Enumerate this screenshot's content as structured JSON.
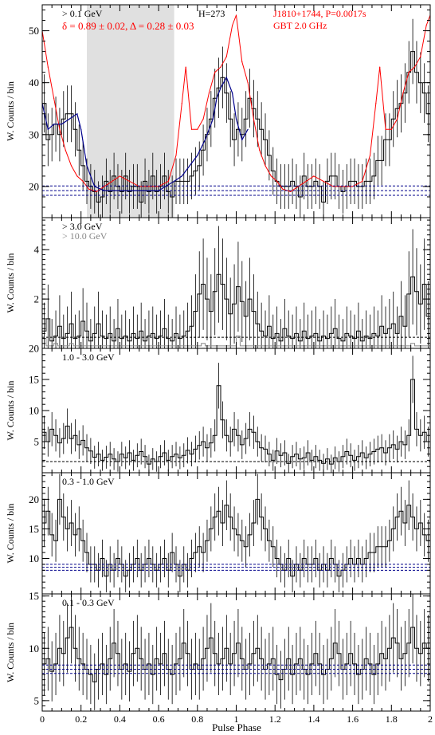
{
  "figure": {
    "xlabel": "Pulse Phase",
    "x_ticks": [
      "0",
      "0.2",
      "0.4",
      "0.6",
      "0.8",
      "1",
      "1.2",
      "1.4",
      "1.6",
      "1.8",
      "2"
    ]
  },
  "colors": {
    "gamma": "#000000",
    "radio": "#ff0000",
    "model": "#00008b",
    "background": "#00008b",
    "offpulse_region": "#e0e0e0",
    "high_energy": "#888888"
  },
  "chart_data": [
    {
      "type": "line",
      "panel": "0.1 GeV",
      "ylabel": "W. Counts / bin",
      "ylim": [
        14,
        55
      ],
      "y_ticks": [
        20,
        30,
        40,
        50
      ],
      "xlim": [
        0,
        2
      ],
      "labels": {
        "energy": "> 0.1 GeV",
        "htest": "H=273",
        "fit": "δ = 0.89 ± 0.02, Δ = 0.28 ± 0.03",
        "pulsar": "J1810+1744, P=0.0017s",
        "radio": "GBT 2.0 GHz"
      },
      "offpulse": [
        0.23,
        0.68
      ],
      "background_levels": [
        18.3,
        19.2,
        20.1
      ],
      "series": [
        {
          "values": [
            36,
            29,
            30,
            32,
            30,
            33,
            34,
            34,
            31,
            27,
            24,
            21,
            20,
            19,
            17,
            18,
            21,
            19,
            22,
            20,
            19,
            22,
            19,
            20,
            20,
            17,
            21,
            19,
            22,
            19,
            20,
            22,
            19,
            18,
            21,
            21,
            21,
            21,
            22,
            23,
            24,
            27,
            30,
            33,
            37,
            39,
            41,
            38,
            33,
            29,
            31,
            30,
            33,
            37,
            35,
            33,
            31,
            29,
            26,
            23,
            21,
            20,
            20,
            20,
            21,
            20,
            18,
            22,
            20,
            20,
            21,
            20,
            17,
            21,
            22,
            22,
            20,
            19,
            20,
            21,
            21,
            20,
            20,
            21,
            21,
            22,
            25,
            25,
            29,
            29,
            33,
            35,
            36,
            38,
            42,
            46,
            42,
            40,
            38,
            34
          ]
        },
        {
          "name": "radio",
          "x": [
            0,
            0.03,
            0.06,
            0.09,
            0.12,
            0.15,
            0.18,
            0.21,
            0.24,
            0.28,
            0.32,
            0.36,
            0.4,
            0.45,
            0.5,
            0.55,
            0.6,
            0.65,
            0.69,
            0.72,
            0.74,
            0.77,
            0.8,
            0.83,
            0.86,
            0.89,
            0.92,
            0.95,
            0.98,
            1.0,
            1.03,
            1.06,
            1.09,
            1.12,
            1.15,
            1.18,
            1.21,
            1.24,
            1.28,
            1.32,
            1.36,
            1.4,
            1.45,
            1.5,
            1.55,
            1.6,
            1.65,
            1.69,
            1.72,
            1.74,
            1.77,
            1.8,
            1.83,
            1.86,
            1.89,
            1.92,
            1.95,
            1.98,
            2.0
          ],
          "values": [
            50,
            43,
            37,
            31,
            27,
            24,
            22,
            21,
            19.5,
            19,
            20,
            21,
            22,
            21,
            20,
            20,
            20,
            21,
            26,
            36,
            43,
            31,
            31,
            33,
            38,
            42,
            43,
            45,
            51,
            53,
            44,
            40,
            33,
            27,
            24,
            22,
            21,
            19.5,
            19,
            20,
            21,
            22,
            21,
            20,
            20,
            20,
            21,
            26,
            36,
            43,
            31,
            31,
            33,
            38,
            42,
            43,
            45,
            51,
            53
          ]
        },
        {
          "name": "model",
          "x": [
            0,
            0.03,
            0.06,
            0.1,
            0.14,
            0.18,
            0.2,
            0.23,
            0.27,
            0.32,
            0.4,
            0.5,
            0.6,
            0.68,
            0.72,
            0.76,
            0.8,
            0.84,
            0.88,
            0.9,
            0.92,
            0.95,
            0.98,
            1.0,
            1.03,
            1.06
          ],
          "values": [
            36,
            31,
            32,
            32,
            33,
            34,
            31,
            24,
            20,
            19.2,
            19.2,
            19.2,
            19.2,
            21,
            22,
            24,
            26,
            29,
            33,
            37,
            39,
            41,
            38,
            33,
            29,
            31
          ]
        }
      ]
    },
    {
      "type": "line",
      "panel": "3.0 GeV",
      "ylabel": "W. Counts / bin",
      "ylim": [
        0,
        5.3
      ],
      "y_ticks": [
        2,
        4
      ],
      "xlim": [
        0,
        2
      ],
      "labels": {
        "energy": "> 3.0 GeV",
        "energy2": "> 10.0 GeV"
      },
      "background_levels": [
        0.45
      ],
      "series": [
        {
          "values": [
            0.7,
            1.2,
            0.3,
            0.5,
            0.9,
            0.4,
            0.6,
            1.0,
            0.4,
            0.5,
            1.1,
            0.7,
            0.3,
            0.6,
            1.0,
            0.5,
            0.4,
            0.6,
            0.3,
            0.8,
            0.4,
            0.5,
            0.3,
            0.6,
            0.4,
            0.7,
            0.3,
            0.5,
            0.6,
            0.4,
            0.5,
            0.8,
            0.4,
            0.3,
            0.6,
            0.4,
            0.5,
            0.7,
            0.9,
            1.5,
            2.2,
            2.6,
            2.0,
            1.5,
            2.3,
            3.0,
            2.6,
            2.0,
            1.4,
            1.8,
            2.5,
            1.9,
            1.3,
            2.0,
            1.5,
            1.0,
            0.7,
            0.5,
            0.9,
            0.4,
            0.6,
            0.3,
            0.8,
            0.5,
            0.4,
            0.6,
            0.3,
            0.7,
            0.4,
            0.5,
            0.6,
            0.3,
            0.5,
            0.4,
            0.6,
            0.8,
            0.4,
            0.3,
            0.6,
            0.5,
            0.4,
            0.7,
            0.3,
            0.5,
            0.4,
            0.6,
            0.5,
            0.9,
            0.6,
            0.8,
            1.0,
            0.6,
            1.3,
            0.9,
            2.2,
            2.9,
            2.3,
            1.8,
            2.6,
            1.3
          ]
        },
        {
          "name": "> 10.0 GeV",
          "values": [
            0.4,
            0.1,
            0.1,
            0.2,
            0.1,
            0.1,
            0.1,
            0.2,
            0.1,
            0.1,
            0.1,
            0.1,
            0.1,
            0.1,
            0.1,
            0.1,
            0.1,
            0.1,
            0.1,
            0.1,
            0.1,
            0.1,
            0.1,
            0.1,
            0.1,
            0.1,
            0.1,
            0.1,
            0.1,
            0.1,
            0.1,
            0.1,
            0.1,
            0.1,
            0.1,
            0.1,
            0.1,
            0.1,
            0.1,
            0.1,
            0.1,
            0.2,
            0.1,
            0.1,
            0.1,
            0.1,
            0.1,
            0.1,
            0.1,
            0.1,
            0.5,
            0.1,
            0.1,
            0.1,
            0.1,
            0.1,
            0.1,
            0.1,
            0.1,
            0.1,
            0.1,
            0.1,
            0.1,
            0.1,
            0.1,
            0.1,
            0.1,
            0.1,
            0.1,
            0.1,
            0.1,
            0.1,
            0.1,
            0.1,
            0.1,
            0.1,
            0.1,
            0.1,
            0.1,
            0.1,
            0.1,
            0.1,
            0.1,
            0.1,
            0.1,
            0.1,
            0.1,
            0.1,
            0.1,
            0.1,
            0.1,
            0.1,
            0.1,
            0.1,
            0.1,
            0.2,
            0.1,
            0.1,
            0.1,
            0.1
          ]
        }
      ]
    },
    {
      "type": "line",
      "panel": "1.0 - 3.0 GeV",
      "ylabel": "W. Counts / bin",
      "ylim": [
        0,
        20
      ],
      "y_ticks": [
        5,
        10,
        15,
        20
      ],
      "xlim": [
        0,
        2
      ],
      "labels": {
        "energy": "1.0 - 3.0 GeV"
      },
      "background_levels": [
        1.8
      ],
      "series": [
        {
          "values": [
            6.5,
            5.0,
            7.0,
            6.0,
            4.8,
            5.5,
            7.5,
            5.5,
            6.0,
            4.5,
            5.2,
            4.0,
            3.5,
            2.5,
            3.0,
            2.0,
            2.5,
            3.0,
            2.2,
            1.8,
            3.0,
            2.4,
            3.2,
            2.0,
            2.8,
            3.4,
            2.6,
            1.4,
            2.2,
            1.8,
            2.6,
            3.2,
            2.0,
            2.6,
            3.0,
            2.4,
            2.8,
            3.6,
            3.0,
            3.8,
            4.4,
            5.0,
            4.0,
            4.8,
            6.0,
            14.0,
            8.5,
            6.0,
            5.0,
            7.0,
            6.0,
            4.5,
            5.5,
            7.0,
            6.5,
            5.0,
            4.0,
            3.8,
            3.0,
            2.0,
            3.5,
            2.8,
            3.2,
            1.5,
            2.6,
            3.0,
            2.2,
            2.4,
            3.2,
            2.0,
            2.6,
            2.0,
            1.5,
            2.2,
            1.4,
            2.4,
            1.8,
            2.6,
            3.4,
            2.8,
            2.0,
            2.6,
            3.2,
            2.4,
            3.0,
            3.4,
            3.8,
            4.0,
            3.2,
            4.0,
            4.5,
            3.8,
            5.0,
            4.5,
            6.0,
            15.0,
            7.0,
            6.0,
            6.5,
            5.0
          ]
        }
      ]
    },
    {
      "type": "line",
      "panel": "0.3 - 1.0 GeV",
      "ylabel": "W. Counts / bin",
      "ylim": [
        4,
        24.5
      ],
      "y_ticks": [
        10,
        15,
        20
      ],
      "xlim": [
        0,
        2
      ],
      "labels": {
        "energy": "0.3 - 1.0 GeV"
      },
      "background_levels": [
        8.0,
        8.5,
        9.0
      ],
      "series": [
        {
          "values": [
            16,
            18,
            14,
            13,
            20,
            17,
            15,
            16,
            14,
            15,
            13,
            11,
            9,
            9,
            8,
            10,
            7,
            9,
            8,
            10,
            9,
            7,
            8,
            9,
            10,
            8,
            9,
            10,
            9,
            8,
            9,
            10,
            8,
            11,
            9,
            7,
            9,
            8,
            10,
            11,
            12,
            11,
            13,
            15,
            17,
            18,
            16,
            19,
            17,
            15,
            14,
            13,
            12,
            14,
            16,
            20,
            17,
            15,
            13,
            12,
            10,
            9,
            8,
            10,
            7,
            9,
            8,
            10,
            9,
            9,
            10,
            8,
            9,
            8,
            10,
            9,
            7,
            8,
            9,
            10,
            9,
            10,
            9,
            10,
            11,
            11,
            12,
            12,
            12,
            13,
            15,
            17,
            18,
            16,
            19,
            17,
            15,
            16,
            14,
            13
          ]
        }
      ]
    },
    {
      "type": "line",
      "panel": "0.1 - 0.3 GeV",
      "ylabel": "W. Counts / bin",
      "ylim": [
        4,
        15.2
      ],
      "y_ticks": [
        5,
        10,
        15
      ],
      "xlim": [
        0,
        2
      ],
      "labels": {
        "energy": "0.1 - 0.3 GeV"
      },
      "background_levels": [
        7.6,
        8.0,
        8.4
      ],
      "series": [
        {
          "values": [
            8.5,
            9.0,
            7.8,
            8.5,
            10.0,
            9.5,
            11.0,
            12.0,
            10.0,
            9.0,
            8.5,
            8.0,
            7.5,
            6.8,
            8.0,
            8.5,
            7.5,
            9.0,
            10.5,
            9.5,
            8.0,
            8.5,
            7.8,
            9.5,
            10.0,
            9.0,
            8.0,
            8.5,
            7.5,
            9.0,
            8.5,
            9.5,
            8.0,
            7.5,
            8.5,
            9.0,
            10.5,
            9.5,
            8.0,
            8.5,
            8.0,
            9.0,
            10.0,
            11.0,
            9.5,
            8.5,
            9.0,
            10.0,
            8.5,
            9.5,
            10.5,
            9.0,
            8.0,
            8.5,
            9.5,
            10.0,
            9.0,
            8.0,
            8.5,
            9.0,
            7.5,
            7.0,
            8.0,
            9.0,
            7.5,
            8.5,
            9.0,
            8.0,
            7.5,
            8.5,
            9.5,
            8.5,
            7.5,
            8.0,
            9.0,
            10.5,
            9.5,
            8.0,
            8.5,
            9.5,
            8.5,
            7.5,
            8.0,
            9.0,
            8.5,
            7.5,
            8.5,
            9.5,
            9.0,
            10.0,
            11.0,
            10.5,
            9.0,
            9.5,
            10.5,
            12.0,
            10.0,
            9.5,
            10.5,
            10.0
          ]
        }
      ]
    }
  ]
}
